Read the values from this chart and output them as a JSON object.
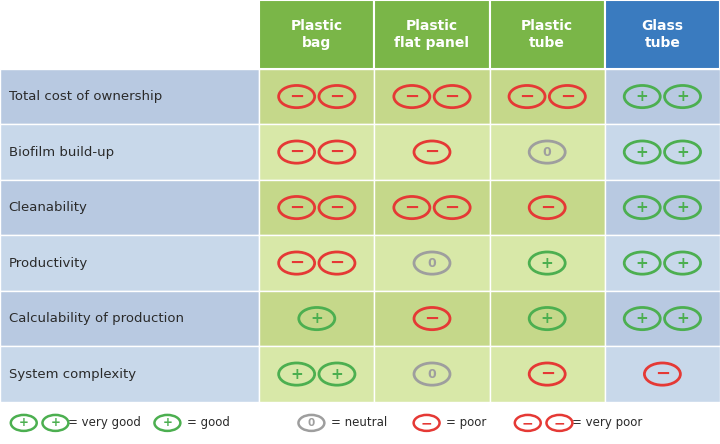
{
  "col_headers": [
    "Plastic\nbag",
    "Plastic\nflat panel",
    "Plastic\ntube",
    "Glass\ntube"
  ],
  "row_headers": [
    "Total cost of ownership",
    "Biofilm build-up",
    "Cleanability",
    "Productivity",
    "Calculability of production",
    "System complexity"
  ],
  "col_header_bg": [
    "#7ab648",
    "#7ab648",
    "#7ab648",
    "#3a7bbf"
  ],
  "col_header_text": "#ffffff",
  "row_bg_odd": "#b8c9e1",
  "row_bg_even": "#c8d8ea",
  "cell_bg_odd": "#c5d88a",
  "cell_bg_even": "#d8e8a8",
  "glass_col_bg_odd": "#b8c9e1",
  "glass_col_bg_even": "#c8d8ea",
  "legend_bg": "#ffffff",
  "table_data": [
    [
      "very_poor",
      "very_poor",
      "very_poor",
      "very_good"
    ],
    [
      "very_poor",
      "poor",
      "neutral",
      "very_good"
    ],
    [
      "very_poor",
      "very_poor",
      "poor",
      "very_good"
    ],
    [
      "very_poor",
      "neutral",
      "good",
      "very_good"
    ],
    [
      "good",
      "poor",
      "good",
      "very_good"
    ],
    [
      "very_good",
      "neutral",
      "poor",
      "poor"
    ]
  ],
  "figsize": [
    7.2,
    4.44
  ],
  "dpi": 100
}
